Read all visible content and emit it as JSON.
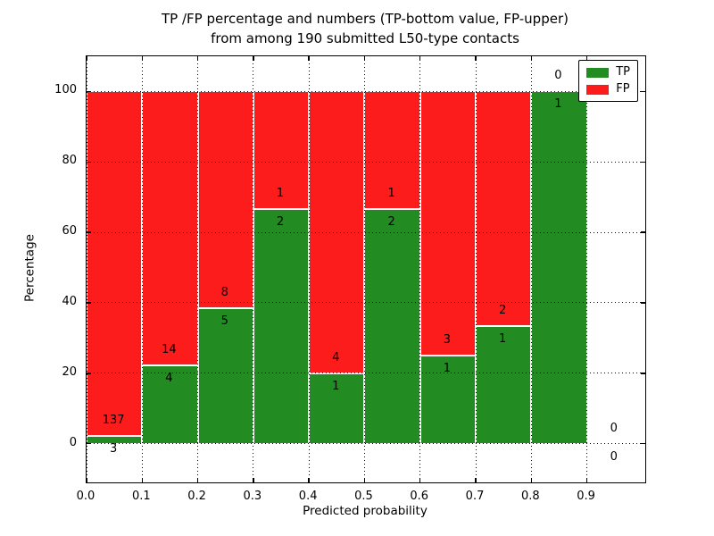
{
  "chart_data": {
    "type": "bar",
    "stacked": true,
    "normalized_to_percent": true,
    "title_line1": "TP /FP percentage and numbers (TP-bottom value, FP-upper)",
    "title_line2": "from among 190 submitted L50-type contacts",
    "total_submitted": 190,
    "xlabel": "Predicted probability",
    "ylabel": "Percentage",
    "categories": [
      "0.0-0.1",
      "0.1-0.2",
      "0.2-0.3",
      "0.3-0.4",
      "0.4-0.5",
      "0.5-0.6",
      "0.6-0.7",
      "0.7-0.8",
      "0.8-0.9",
      "0.9-1.0"
    ],
    "bin_width": 0.1,
    "series": [
      {
        "name": "TP",
        "color": "#228B22",
        "values": [
          3,
          4,
          5,
          2,
          1,
          2,
          1,
          1,
          1,
          0
        ]
      },
      {
        "name": "FP",
        "color": "#FC1C1C",
        "values": [
          137,
          14,
          8,
          1,
          4,
          1,
          3,
          2,
          0,
          0
        ]
      }
    ],
    "tp_percentages": [
      2.14,
      22.22,
      38.46,
      66.67,
      20.0,
      66.67,
      25.0,
      33.33,
      100.0,
      0.0
    ],
    "x_ticks": [
      0.0,
      0.1,
      0.2,
      0.3,
      0.4,
      0.5,
      0.6,
      0.7,
      0.8,
      0.9
    ],
    "x_tick_labels": [
      "0.0",
      "0.1",
      "0.2",
      "0.3",
      "0.4",
      "0.5",
      "0.6",
      "0.7",
      "0.8",
      "0.9"
    ],
    "y_ticks": [
      0,
      20,
      40,
      60,
      80,
      100
    ],
    "y_tick_labels": [
      "0",
      "20",
      "40",
      "60",
      "80",
      "100"
    ],
    "xlim": [
      0,
      1.005
    ],
    "ylim": [
      -11,
      110
    ],
    "grid": "dotted",
    "legend_position": "upper right",
    "legend": [
      {
        "label": "TP",
        "color": "#228B22"
      },
      {
        "label": "FP",
        "color": "#FC1C1C"
      }
    ]
  }
}
